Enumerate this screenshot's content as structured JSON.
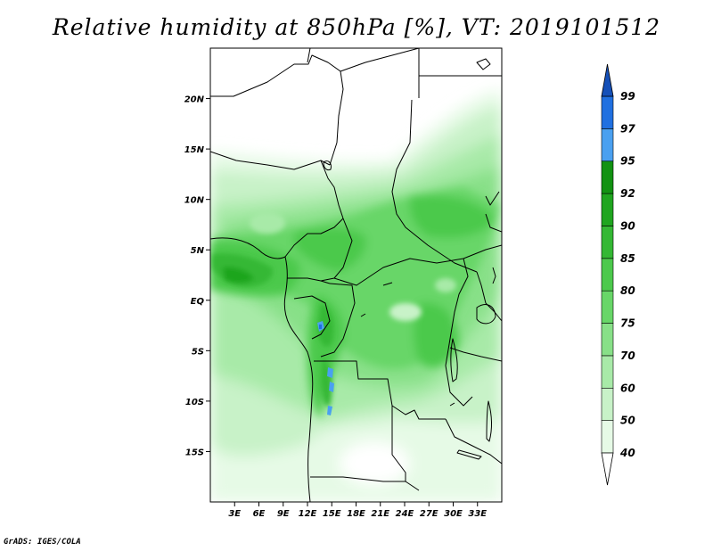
{
  "title": "Relative humidity at 850hPa [%], VT: 2019101512",
  "credit": "GrADS: IGES/COLA",
  "map": {
    "lon_range": [
      0,
      36
    ],
    "lat_range": [
      -20,
      25
    ],
    "lat_ticks": [
      {
        "value": 20,
        "label": "20N"
      },
      {
        "value": 15,
        "label": "15N"
      },
      {
        "value": 10,
        "label": "10N"
      },
      {
        "value": 5,
        "label": "5N"
      },
      {
        "value": 0,
        "label": "EQ"
      },
      {
        "value": -5,
        "label": "5S"
      },
      {
        "value": -10,
        "label": "10S"
      },
      {
        "value": -15,
        "label": "15S"
      }
    ],
    "lon_ticks": [
      {
        "value": 3,
        "label": "3E"
      },
      {
        "value": 6,
        "label": "6E"
      },
      {
        "value": 9,
        "label": "9E"
      },
      {
        "value": 12,
        "label": "12E"
      },
      {
        "value": 15,
        "label": "15E"
      },
      {
        "value": 18,
        "label": "18E"
      },
      {
        "value": 21,
        "label": "21E"
      },
      {
        "value": 24,
        "label": "24E"
      },
      {
        "value": 27,
        "label": "27E"
      },
      {
        "value": 30,
        "label": "30E"
      },
      {
        "value": 33,
        "label": "33E"
      }
    ]
  },
  "colorbar": {
    "levels": [
      "40",
      "50",
      "60",
      "70",
      "75",
      "80",
      "85",
      "90",
      "92",
      "95",
      "97",
      "99"
    ],
    "colors": [
      "#ffffff",
      "#e6fae6",
      "#c8f2c8",
      "#a8eaa8",
      "#88e088",
      "#68d668",
      "#4cc94c",
      "#34b834",
      "#1fa51f",
      "#129212",
      "#4aa0f0",
      "#2070e0",
      "#1550b8"
    ]
  }
}
